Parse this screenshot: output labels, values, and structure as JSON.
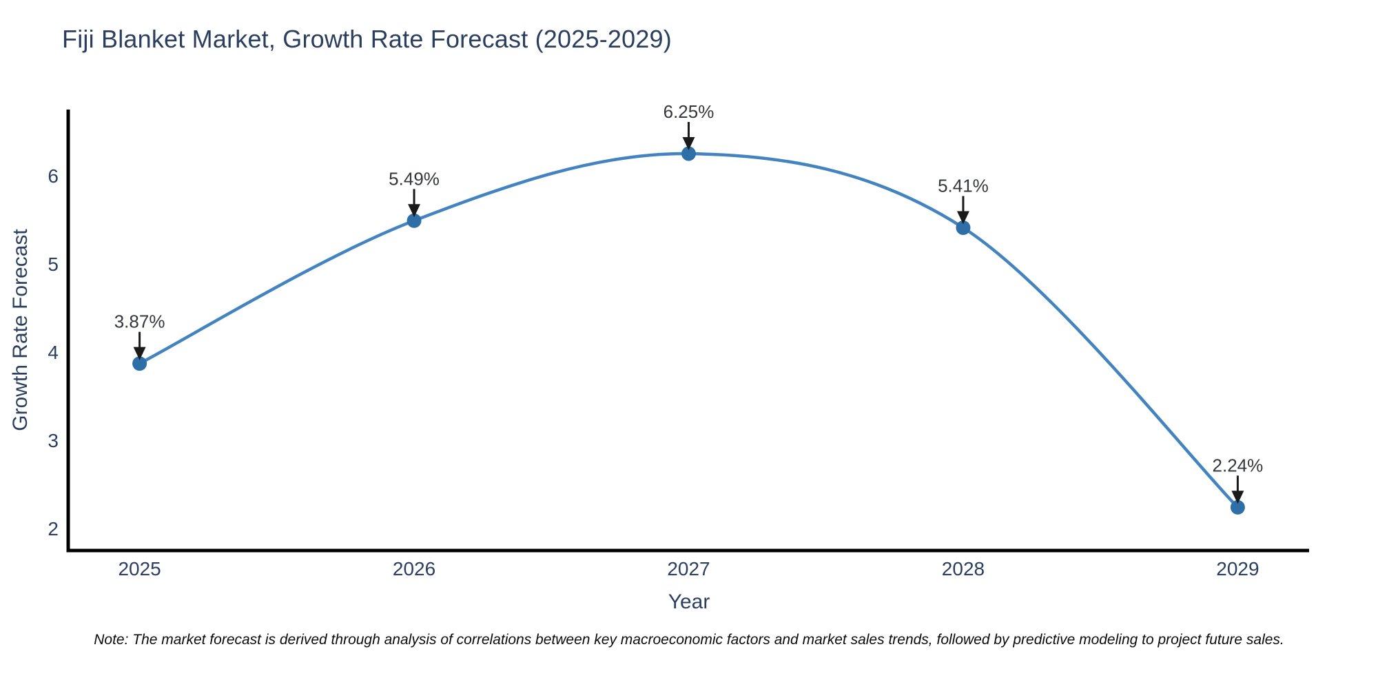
{
  "figure": {
    "title": "Fiji Blanket Market, Growth Rate Forecast (2025-2029)",
    "note": "Note: The market forecast is derived through analysis of correlations between key macroeconomic factors and market sales trends, followed by predictive modeling to project future sales."
  },
  "chart_data": {
    "type": "line",
    "title": "Fiji Blanket Market, Growth Rate Forecast (2025-2029)",
    "xlabel": "Year",
    "ylabel": "Growth Rate Forecast",
    "x": [
      2025,
      2026,
      2027,
      2028,
      2029
    ],
    "xticklabels": [
      "2025",
      "2026",
      "2027",
      "2028",
      "2029"
    ],
    "yticks": [
      2,
      3,
      4,
      5,
      6
    ],
    "xlim": [
      2024.74,
      2029.26
    ],
    "ylim": [
      1.75,
      6.75
    ],
    "grid": false,
    "legend": false,
    "line_shape": "spline",
    "series": [
      {
        "name": "Growth Rate Forecast",
        "values": [
          3.87,
          5.49,
          6.25,
          5.41,
          2.24
        ]
      }
    ],
    "point_labels": [
      "3.87%",
      "5.49%",
      "6.25%",
      "5.41%",
      "2.24%"
    ],
    "colors": {
      "line": "#4383bf",
      "marker": "#2f6fa8",
      "axis": "#000000",
      "tick_label": "#2a3f5f",
      "axis_title": "#2a3f5f",
      "title": "#2a3f5f",
      "annotation_text": "#33373d",
      "arrow": "#1a1a1a"
    }
  }
}
